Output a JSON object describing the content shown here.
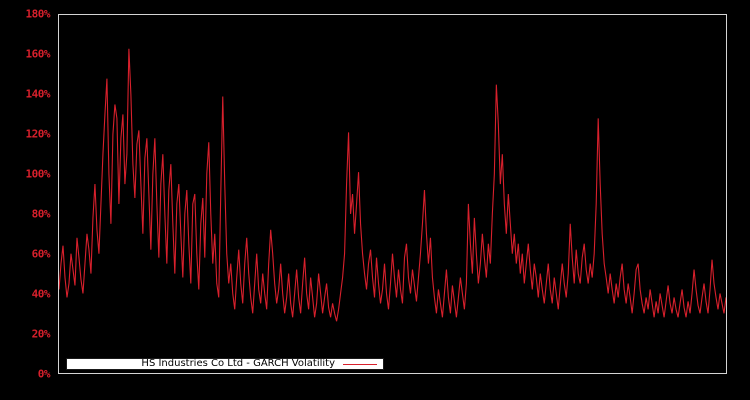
{
  "figure": {
    "background": "#000000",
    "plot_border_color": "#d4d4d4"
  },
  "legend": {
    "label": "HS Industries Co Ltd - GARCH Volatility",
    "line_color": "#d8202c",
    "background": "#ffffff",
    "text_color": "#000000"
  },
  "y_axis": {
    "tick_labels": [
      "180%",
      "160%",
      "140%",
      "120%",
      "100%",
      "80%",
      "60%",
      "40%",
      "20%",
      "0%"
    ],
    "tick_values": [
      180,
      160,
      140,
      120,
      100,
      80,
      60,
      40,
      20,
      0
    ],
    "label_color": "#d8202c"
  },
  "chart_data": {
    "type": "line",
    "title": "",
    "xlabel": "",
    "ylabel": "",
    "ylim": [
      0,
      180
    ],
    "y_unit": "%",
    "grid": false,
    "x_tick_labels_visible": false,
    "legend_position": "inside-bottom-left",
    "series": [
      {
        "name": "HS Industries Co Ltd - GARCH Volatility",
        "color": "#d8202c",
        "unit": "%",
        "values": [
          42,
          55,
          64,
          48,
          38,
          45,
          60,
          52,
          44,
          68,
          58,
          47,
          40,
          55,
          70,
          62,
          50,
          78,
          95,
          72,
          60,
          85,
          110,
          130,
          148,
          100,
          75,
          120,
          135,
          128,
          85,
          118,
          130,
          95,
          110,
          163,
          140,
          105,
          88,
          115,
          122,
          95,
          70,
          108,
          118,
          90,
          62,
          100,
          118,
          85,
          58,
          95,
          110,
          80,
          55,
          92,
          105,
          75,
          50,
          85,
          95,
          70,
          48,
          80,
          92,
          65,
          45,
          85,
          90,
          60,
          42,
          75,
          88,
          58,
          100,
          116,
          80,
          55,
          70,
          45,
          38,
          90,
          139,
          95,
          60,
          45,
          55,
          40,
          32,
          48,
          62,
          45,
          35,
          55,
          68,
          50,
          38,
          30,
          45,
          60,
          42,
          35,
          50,
          40,
          32,
          55,
          72,
          60,
          45,
          35,
          42,
          55,
          40,
          30,
          38,
          50,
          35,
          28,
          40,
          52,
          38,
          30,
          45,
          58,
          40,
          32,
          48,
          38,
          28,
          35,
          50,
          40,
          30,
          38,
          45,
          33,
          28,
          35,
          30,
          26,
          32,
          40,
          48,
          60,
          95,
          121,
          80,
          90,
          70,
          85,
          101,
          75,
          60,
          50,
          42,
          55,
          62,
          48,
          38,
          58,
          45,
          35,
          42,
          55,
          40,
          32,
          45,
          60,
          48,
          38,
          52,
          42,
          35,
          58,
          65,
          48,
          40,
          52,
          44,
          36,
          48,
          60,
          75,
          92,
          70,
          55,
          68,
          48,
          38,
          30,
          42,
          35,
          28,
          40,
          52,
          38,
          30,
          44,
          36,
          28,
          38,
          48,
          40,
          32,
          45,
          85,
          65,
          50,
          78,
          60,
          45,
          55,
          70,
          58,
          48,
          65,
          55,
          80,
          100,
          145,
          125,
          95,
          110,
          85,
          70,
          90,
          75,
          60,
          70,
          55,
          65,
          50,
          60,
          45,
          55,
          65,
          52,
          42,
          55,
          48,
          38,
          50,
          42,
          35,
          45,
          55,
          42,
          35,
          48,
          40,
          32,
          44,
          55,
          45,
          38,
          50,
          75,
          58,
          45,
          62,
          50,
          45,
          58,
          65,
          52,
          45,
          55,
          48,
          60,
          85,
          128,
          95,
          70,
          55,
          48,
          40,
          50,
          42,
          35,
          45,
          38,
          48,
          55,
          42,
          35,
          45,
          38,
          30,
          40,
          52,
          55,
          42,
          35,
          30,
          38,
          32,
          42,
          35,
          28,
          36,
          30,
          40,
          34,
          28,
          36,
          44,
          35,
          30,
          38,
          32,
          28,
          35,
          42,
          33,
          28,
          36,
          30,
          40,
          52,
          42,
          34,
          30,
          38,
          45,
          36,
          30,
          42,
          57,
          45,
          38,
          32,
          40,
          35,
          30,
          38
        ]
      }
    ]
  }
}
